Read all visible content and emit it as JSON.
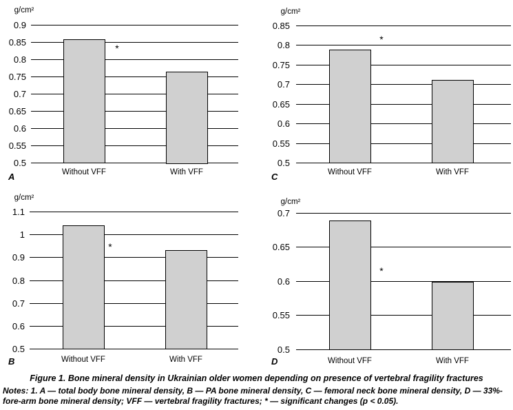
{
  "chart_data": [
    {
      "type": "bar",
      "panel": "A",
      "ylabel": "g/cm²",
      "categories": [
        "Without VFF",
        "With VFF"
      ],
      "values": [
        0.858,
        0.765
      ],
      "ylim": [
        0.5,
        0.9
      ],
      "ytick_step": 0.05,
      "yticks": [
        "0.5",
        "0.55",
        "0.6",
        "0.65",
        "0.7",
        "0.75",
        "0.8",
        "0.85",
        "0.9"
      ],
      "annotation": "*",
      "grid": true
    },
    {
      "type": "bar",
      "panel": "C",
      "ylabel": "g/cm²",
      "categories": [
        "Without VFF",
        "With VFF"
      ],
      "values": [
        0.788,
        0.711
      ],
      "ylim": [
        0.5,
        0.85
      ],
      "ytick_step": 0.05,
      "yticks": [
        "0.5",
        "0.55",
        "0.6",
        "0.65",
        "0.7",
        "0.75",
        "0.8",
        "0.85"
      ],
      "annotation": "*",
      "grid": true
    },
    {
      "type": "bar",
      "panel": "B",
      "ylabel": "g/cm²",
      "categories": [
        "Without VFF",
        "With VFF"
      ],
      "values": [
        1.04,
        0.93
      ],
      "ylim": [
        0.5,
        1.1
      ],
      "ytick_step": 0.1,
      "yticks": [
        "0.5",
        "0.6",
        "0.7",
        "0.8",
        "0.9",
        "1",
        "1.1"
      ],
      "annotation": "*",
      "grid": true
    },
    {
      "type": "bar",
      "panel": "D",
      "ylabel": "g/cm²",
      "categories": [
        "Without VFF",
        "With VFF"
      ],
      "values": [
        0.689,
        0.599
      ],
      "ylim": [
        0.5,
        0.7
      ],
      "ytick_step": 0.05,
      "yticks": [
        "0.5",
        "0.55",
        "0.6",
        "0.65",
        "0.7"
      ],
      "annotation": "*",
      "grid": true
    }
  ],
  "caption": "Figure 1. Bone mineral density in Ukrainian older women depending on presence of vertebral fragility fractures",
  "notes": "Notes: 1. A — total body bone mineral density, B — PA bone mineral density, C — femoral neck bone mineral density, D — 33%-fore-arm bone mineral density; VFF — vertebral fragility fractures; * — significant changes (p < 0.05)."
}
